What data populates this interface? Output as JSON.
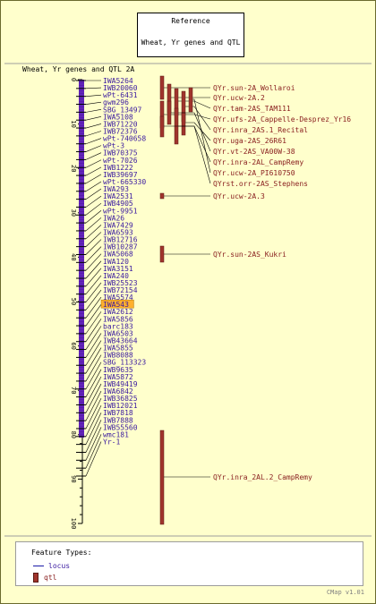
{
  "reference": {
    "title": "Reference",
    "subtitle": "Wheat, Yr genes and QTL"
  },
  "map": {
    "title": "Wheat, Yr genes and QTL 2A",
    "scale_ticks": [
      "0",
      "10",
      "20",
      "30",
      "40",
      "50",
      "60",
      "70",
      "80",
      "90",
      "100"
    ],
    "axis_max": 100,
    "loci": [
      "IWA5264",
      "IWB20060",
      "wPt-6431",
      "gwm296",
      "SBG_13497",
      "IWA5108",
      "IWB71220",
      "IWB72376",
      "wPt-740658",
      "wPt-3",
      "IWB70375",
      "wPt-7026",
      "IWB1222",
      "IWB39697",
      "wPt-665330",
      "IWA293",
      "IWA2531",
      "IWB4905",
      "wPt-9951",
      "IWA26",
      "IWA7429",
      "IWA6593",
      "IWB12716",
      "IWB10287",
      "IWA5068",
      "IWA120",
      "IWA3151",
      "IWA240",
      "IWB25523",
      "IWB72154",
      "IWA5574",
      "IWA543",
      "IWA2612",
      "IWA5856",
      "barc183",
      "IWA6503",
      "IWB43664",
      "IWA5855",
      "IWB8088",
      "SBG_113323",
      "IWB9635",
      "IWA5872",
      "IWB49419",
      "IWA6842",
      "IWB36825",
      "IWB12021",
      "IWB7818",
      "IWB7888",
      "IWB55560",
      "wmc181",
      "Yr-1"
    ],
    "highlighted_locus": "IWA543",
    "qtls": [
      "QYr.sun-2A_Wollaroi",
      "QYr.ucw-2A.2",
      "QYr.tam-2AS_TAM111",
      "QYr.ufs-2A_Cappelle-Desprez_Yr16",
      "QYr.inra_2AS.1_Recital",
      "QYr.uga-2AS_26R61",
      "QYr.vt-2AS_VA00W-38",
      "QYr.inra-2AL_CampRemy",
      "QYr.ucw-2A_PI610750",
      "QYrst.orr-2AS_Stephens",
      "QYr.ucw-2A.3",
      "QYr.sun-2AS_Kukri",
      "QYr.inra_2AL.2_CampRemy"
    ]
  },
  "legend": {
    "title": "Feature Types:",
    "locus_label": "locus",
    "qtl_label": "qtl"
  },
  "version": "CMap v1.01",
  "colors": {
    "background": "#FFFFCC",
    "chromosome": "#5a1ab0",
    "locus_text": "#3a1aa0",
    "qtl_fill": "#a0342c",
    "qtl_text": "#8a2020",
    "highlight": "#FFB02E"
  }
}
